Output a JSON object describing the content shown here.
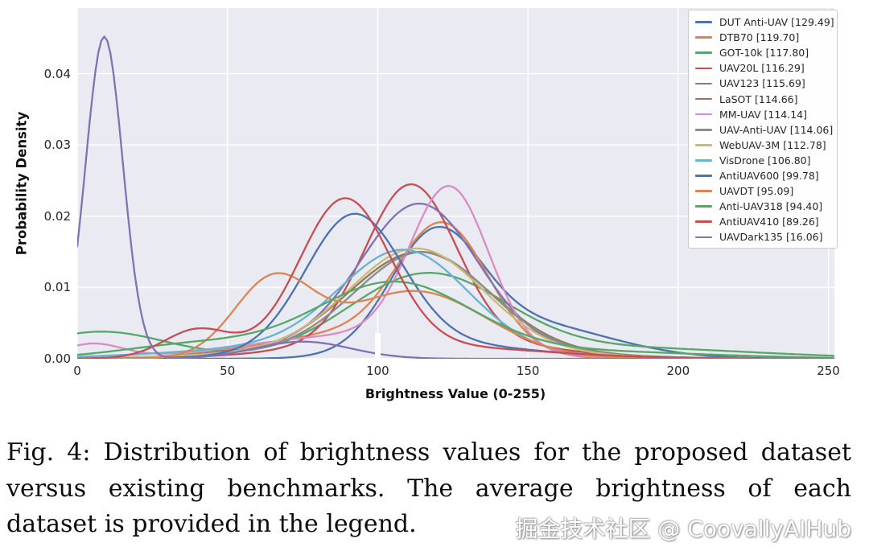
{
  "chart_data": {
    "type": "line",
    "subtype": "kde-density",
    "title": "",
    "xlabel": "Brightness Value (0-255)",
    "ylabel": "Probability Density",
    "xlim": [
      0,
      252
    ],
    "ylim": [
      0,
      0.0492
    ],
    "grid": true,
    "plot_background": "#e9eaf2",
    "grid_color": "#ffffff",
    "legend_position": "upper right",
    "x_ticks": [
      {
        "v": 0,
        "label": "0"
      },
      {
        "v": 50,
        "label": "50"
      },
      {
        "v": 100,
        "label": "100"
      },
      {
        "v": 150,
        "label": "150"
      },
      {
        "v": 200,
        "label": "200"
      },
      {
        "v": 250,
        "label": "250"
      }
    ],
    "y_ticks": [
      {
        "v": 0.0,
        "label": "0.00"
      },
      {
        "v": 0.01,
        "label": "0.01"
      },
      {
        "v": 0.02,
        "label": "0.02"
      },
      {
        "v": 0.03,
        "label": "0.03"
      },
      {
        "v": 0.04,
        "label": "0.04"
      }
    ],
    "peaks_format": "[mu_brightness, sigma, peak_density] gaussian components summed per curve",
    "series": [
      {
        "name": "DUT Anti-UAV",
        "mean_brightness": 129.49,
        "label": "DUT Anti-UAV [129.49]",
        "color": "#4c72b0",
        "peaks": [
          [
            119,
            15,
            0.0155
          ],
          [
            148,
            28,
            0.005
          ]
        ]
      },
      {
        "name": "DTB70",
        "mean_brightness": 119.7,
        "label": "DTB70 [119.70]",
        "color": "#dd8452",
        "peaks": [
          [
            122,
            15,
            0.017
          ],
          [
            92,
            30,
            0.0035
          ]
        ]
      },
      {
        "name": "GOT-10k",
        "mean_brightness": 117.8,
        "label": "GOT-10k [117.80]",
        "color": "#55a868",
        "peaks": [
          [
            116,
            26,
            0.0115
          ],
          [
            8,
            22,
            0.0038
          ],
          [
            180,
            45,
            0.0015
          ]
        ]
      },
      {
        "name": "UAV20L",
        "mean_brightness": 116.29,
        "label": "UAV20L [116.29]",
        "color": "#c44e52",
        "peaks": [
          [
            111,
            15,
            0.0215
          ],
          [
            115,
            35,
            0.003
          ]
        ]
      },
      {
        "name": "UAV123",
        "mean_brightness": 115.69,
        "label": "UAV123 [115.69]",
        "color": "#8172b3",
        "peaks": [
          [
            114,
            19,
            0.019
          ],
          [
            108,
            40,
            0.0028
          ]
        ]
      },
      {
        "name": "LaSOT",
        "mean_brightness": 114.66,
        "label": "LaSOT [114.66]",
        "color": "#937860",
        "peaks": [
          [
            114,
            23,
            0.0135
          ],
          [
            110,
            45,
            0.0015
          ]
        ]
      },
      {
        "name": "MM-UAV",
        "mean_brightness": 114.14,
        "label": "MM-UAV [114.14]",
        "color": "#da8bc3",
        "peaks": [
          [
            124,
            13,
            0.022
          ],
          [
            93,
            35,
            0.0033
          ],
          [
            5,
            10,
            0.002
          ]
        ]
      },
      {
        "name": "UAV-Anti-UAV",
        "mean_brightness": 114.06,
        "label": "UAV-Anti-UAV [114.06]",
        "color": "#8c8c8c",
        "peaks": [
          [
            115,
            22,
            0.0135
          ],
          [
            108,
            45,
            0.0015
          ]
        ]
      },
      {
        "name": "WebUAV-3M",
        "mean_brightness": 112.78,
        "label": "WebUAV-3M [112.78]",
        "color": "#ccb974",
        "peaks": [
          [
            113,
            22,
            0.014
          ],
          [
            105,
            45,
            0.0015
          ]
        ]
      },
      {
        "name": "VisDrone",
        "mean_brightness": 106.8,
        "label": "VisDrone [106.80]",
        "color": "#64b5cd",
        "peaks": [
          [
            109,
            21,
            0.0135
          ],
          [
            88,
            45,
            0.002
          ]
        ]
      },
      {
        "name": "AntiUAV600",
        "mean_brightness": 99.78,
        "label": "AntiUAV600 [99.78]",
        "color": "#4c72b0",
        "peaks": [
          [
            92,
            16,
            0.0185
          ],
          [
            113,
            35,
            0.0022
          ]
        ]
      },
      {
        "name": "UAVDT",
        "mean_brightness": 95.09,
        "label": "UAVDT [95.09]",
        "color": "#dd8452",
        "peaks": [
          [
            65,
            13,
            0.0105
          ],
          [
            112,
            24,
            0.0095
          ]
        ]
      },
      {
        "name": "Anti-UAV318",
        "mean_brightness": 94.4,
        "label": "Anti-UAV318 [94.40]",
        "color": "#55a868",
        "peaks": [
          [
            105,
            26,
            0.0105
          ],
          [
            40,
            25,
            0.002
          ],
          [
            170,
            40,
            0.001
          ]
        ]
      },
      {
        "name": "AntiUAV410",
        "mean_brightness": 89.26,
        "label": "AntiUAV410 [89.26]",
        "color": "#c44e52",
        "peaks": [
          [
            89,
            15,
            0.021
          ],
          [
            40,
            11,
            0.0038
          ],
          [
            112,
            40,
            0.0018
          ]
        ]
      },
      {
        "name": "UAVDark135",
        "mean_brightness": 16.06,
        "label": "UAVDark135 [16.06]",
        "color": "#8172b3",
        "peaks": [
          [
            9,
            6.2,
            0.0452
          ],
          [
            75,
            16,
            0.0024
          ]
        ]
      }
    ]
  },
  "caption": {
    "lines": [
      "Fig. 4: Distribution of brightness values for the proposed dataset",
      "versus existing benchmarks. The average brightness of each",
      "dataset is provided in the legend."
    ]
  },
  "watermark": "掘金技术社区 @ CoovallyAIHub"
}
